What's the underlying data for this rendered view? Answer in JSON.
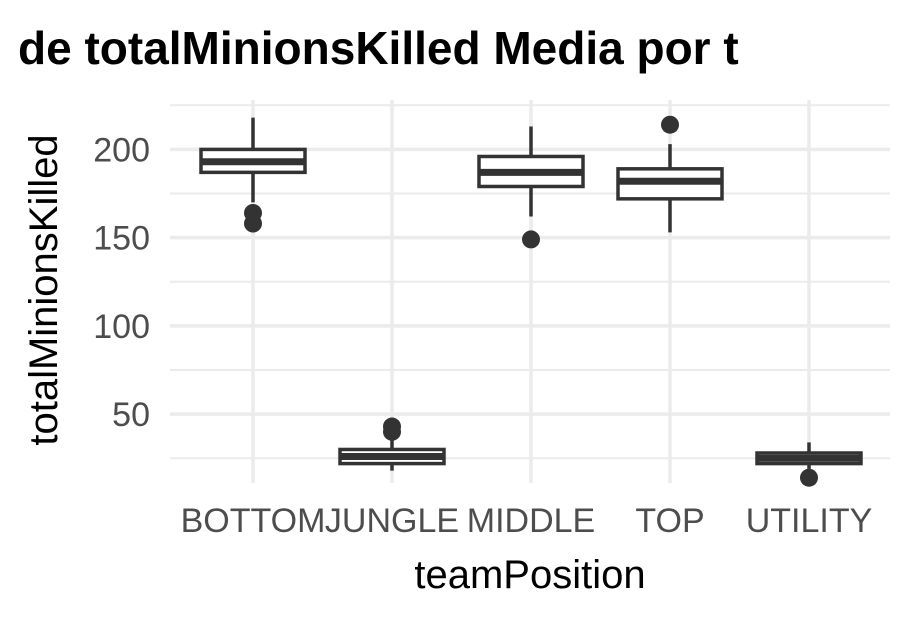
{
  "chart_data": {
    "type": "boxplot",
    "title": "de totalMinionsKilled Media por t",
    "xlabel": "teamPosition",
    "ylabel": "totalMinionsKilled",
    "categories": [
      "BOTTOM",
      "JUNGLE",
      "MIDDLE",
      "TOP",
      "UTILITY"
    ],
    "ylim": [
      11,
      228
    ],
    "yticks": [
      50,
      100,
      150,
      200
    ],
    "grid": true,
    "colors": {
      "box_stroke": "#333333",
      "outlier": "#333333",
      "grid": "#ebebeb",
      "tick_text": "#4d4d4d",
      "background": "#ffffff"
    },
    "boxes": [
      {
        "category": "BOTTOM",
        "whisker_low": 170,
        "q1": 187,
        "median": 193,
        "q3": 200,
        "whisker_high": 218,
        "outliers": [
          164,
          158
        ]
      },
      {
        "category": "JUNGLE",
        "whisker_low": 18,
        "q1": 22,
        "median": 26,
        "q3": 30,
        "whisker_high": 37,
        "outliers": [
          43,
          40
        ]
      },
      {
        "category": "MIDDLE",
        "whisker_low": 162,
        "q1": 179,
        "median": 187,
        "q3": 196,
        "whisker_high": 213,
        "outliers": [
          149
        ]
      },
      {
        "category": "TOP",
        "whisker_low": 153,
        "q1": 172,
        "median": 182,
        "q3": 189,
        "whisker_high": 203,
        "outliers": [
          214
        ]
      },
      {
        "category": "UTILITY",
        "whisker_low": 19,
        "q1": 22,
        "median": 25,
        "q3": 28,
        "whisker_high": 34,
        "outliers": [
          14
        ]
      }
    ]
  }
}
